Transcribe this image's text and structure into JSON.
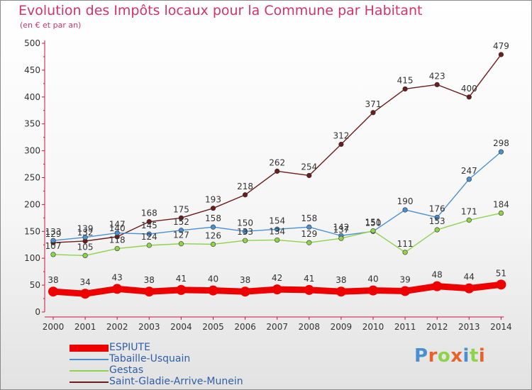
{
  "chart_data": {
    "type": "line",
    "title": "Evolution des Impôts locaux pour la Commune par Habitant",
    "subtitle": "(en € et par an)",
    "x": [
      "2000",
      "2001",
      "2002",
      "2003",
      "2004",
      "2005",
      "2006",
      "2007",
      "2008",
      "2009",
      "2010",
      "2011",
      "2012",
      "2013",
      "2014"
    ],
    "ylim": [
      0,
      500
    ],
    "yticks": [
      "0",
      "50",
      "100",
      "150",
      "200",
      "250",
      "300",
      "350",
      "400",
      "450",
      "500"
    ],
    "grid": false,
    "legend_position": "bottom-left",
    "series": [
      {
        "name": "ESPIUTE",
        "color": "#ee0000",
        "values": [
          38,
          34,
          43,
          38,
          41,
          40,
          38,
          42,
          41,
          38,
          40,
          39,
          48,
          44,
          51
        ],
        "labels": [
          "38",
          "34",
          "43",
          "38",
          "41",
          "40",
          "38",
          "42",
          "41",
          "38",
          "40",
          "39",
          "48",
          "44",
          "51"
        ]
      },
      {
        "name": "Tabaille-Usquain",
        "color": "#4a90cf",
        "values": [
          133,
          139,
          147,
          145,
          152,
          158,
          150,
          154,
          158,
          142,
          150,
          190,
          176,
          247,
          298
        ],
        "labels": [
          "133",
          "139",
          "147",
          "145",
          "152",
          "158",
          "150",
          "154",
          "158",
          "142",
          "150",
          "190",
          "176",
          "247",
          "298"
        ]
      },
      {
        "name": "Gestas",
        "color": "#8ed34a",
        "values": [
          107,
          105,
          118,
          124,
          127,
          126,
          133,
          134,
          129,
          137,
          151,
          111,
          153,
          171,
          184
        ],
        "labels": [
          "107",
          "105",
          "118",
          "124",
          "127",
          "126",
          "133",
          "134",
          "129",
          "137",
          "151",
          "111",
          "153",
          "171",
          "184"
        ]
      },
      {
        "name": "Saint-Gladie-Arrive-Munein",
        "color": "#6b1c1c",
        "values": [
          129,
          132,
          140,
          168,
          175,
          193,
          218,
          262,
          254,
          312,
          371,
          415,
          423,
          400,
          479
        ],
        "labels": [
          "129",
          "132",
          "140",
          "168",
          "175",
          "193",
          "218",
          "262",
          "254",
          "312",
          "371",
          "415",
          "423",
          "400",
          "479"
        ]
      }
    ]
  },
  "brand": {
    "letters": [
      "P",
      "r",
      "o",
      "x",
      "i",
      "t",
      "i"
    ],
    "colors": [
      "#4a90cf",
      "#e8622c",
      "#8ed34a",
      "#e8622c",
      "#4a90cf",
      "#8ed34a",
      "#e8622c"
    ]
  }
}
